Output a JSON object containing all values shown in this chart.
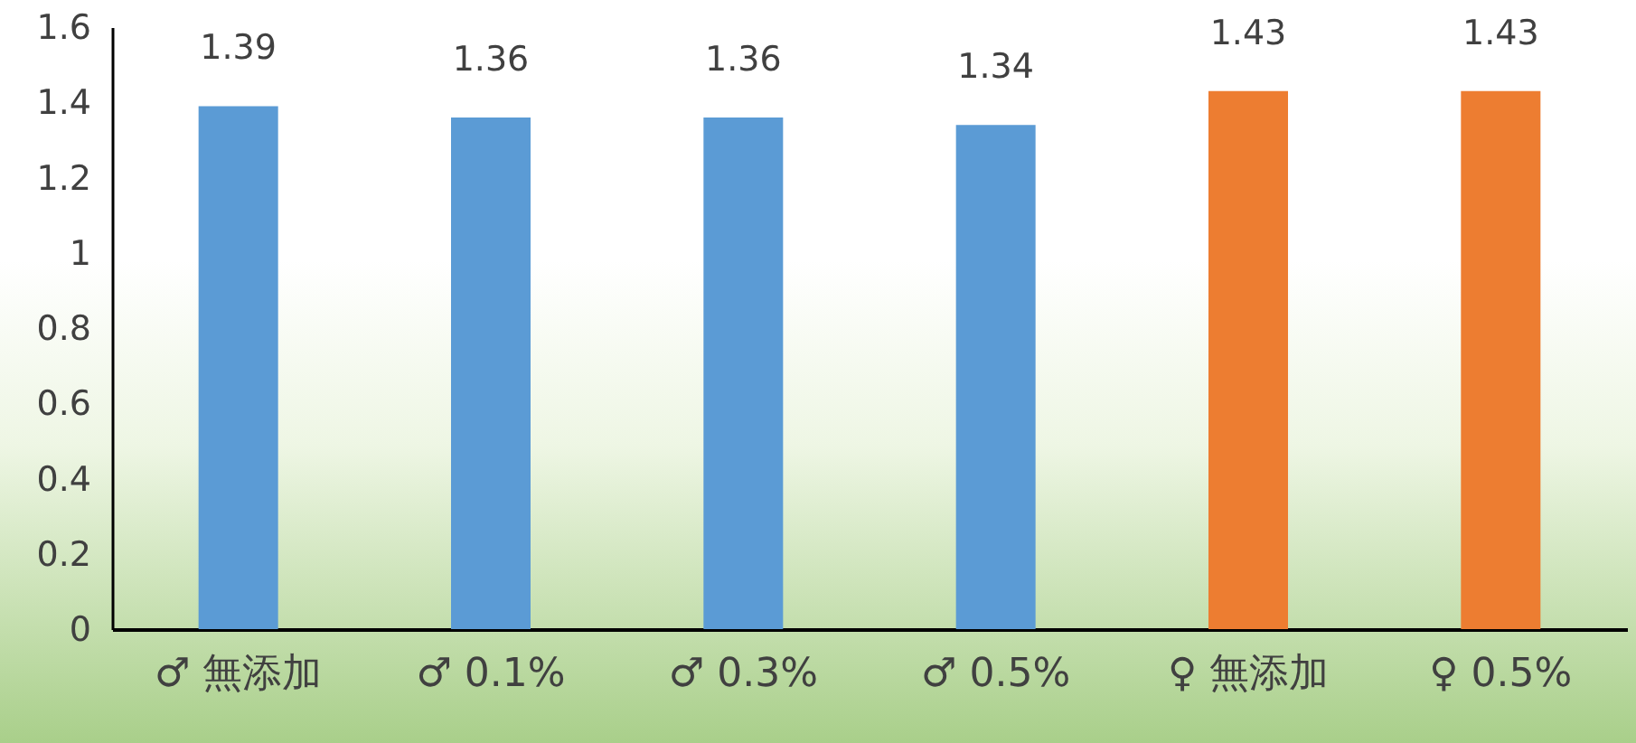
{
  "chart_data": {
    "type": "bar",
    "categories": [
      "♂ 無添加",
      "♂ 0.1%",
      "♂ 0.3%",
      "♂ 0.5%",
      "♀ 無添加",
      "♀ 0.5%"
    ],
    "values": [
      1.39,
      1.36,
      1.36,
      1.34,
      1.43,
      1.43
    ],
    "colors": [
      "#5b9bd5",
      "#5b9bd5",
      "#5b9bd5",
      "#5b9bd5",
      "#ed7d31",
      "#ed7d31"
    ],
    "ylim": [
      0,
      1.6
    ],
    "yticks": [
      0,
      0.2,
      0.4,
      0.6,
      0.8,
      1,
      1.2,
      1.4,
      1.6
    ],
    "data_labels": true,
    "grid": false
  }
}
